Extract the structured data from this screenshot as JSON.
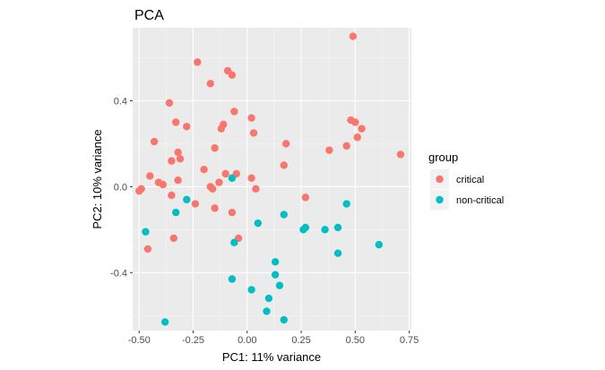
{
  "chart_data": {
    "type": "scatter",
    "title": "PCA",
    "xlabel": "PC1: 11% variance",
    "ylabel": "PC2: 10% variance",
    "xlim": [
      -0.53,
      0.76
    ],
    "ylim": [
      -0.67,
      0.74
    ],
    "xticks": [
      -0.5,
      -0.25,
      0.0,
      0.25,
      0.5,
      0.75
    ],
    "xtick_labels": [
      "-0.50",
      "-0.25",
      "0.00",
      "0.25",
      "0.50",
      "0.75"
    ],
    "yticks": [
      -0.4,
      0.0,
      0.4
    ],
    "ytick_labels": [
      "-0.4",
      "0.0",
      "0.4"
    ],
    "grid": true,
    "legend": {
      "title": "group",
      "placement": "right"
    },
    "series": [
      {
        "name": "critical",
        "color": "#F8766D",
        "points": [
          [
            -0.23,
            0.58
          ],
          [
            -0.09,
            0.54
          ],
          [
            -0.07,
            0.52
          ],
          [
            -0.17,
            0.48
          ],
          [
            0.49,
            0.7
          ],
          [
            -0.36,
            0.39
          ],
          [
            -0.33,
            0.3
          ],
          [
            -0.28,
            0.28
          ],
          [
            -0.11,
            0.29
          ],
          [
            -0.12,
            0.27
          ],
          [
            -0.06,
            0.35
          ],
          [
            0.02,
            0.32
          ],
          [
            0.03,
            0.25
          ],
          [
            -0.43,
            0.21
          ],
          [
            -0.32,
            0.16
          ],
          [
            -0.15,
            0.18
          ],
          [
            -0.35,
            0.12
          ],
          [
            -0.31,
            0.13
          ],
          [
            0.18,
            0.2
          ],
          [
            0.48,
            0.31
          ],
          [
            0.5,
            0.3
          ],
          [
            0.53,
            0.27
          ],
          [
            0.51,
            0.23
          ],
          [
            0.46,
            0.19
          ],
          [
            0.38,
            0.17
          ],
          [
            0.71,
            0.15
          ],
          [
            -0.45,
            0.05
          ],
          [
            -0.41,
            0.02
          ],
          [
            -0.39,
            0.01
          ],
          [
            -0.32,
            0.03
          ],
          [
            -0.2,
            0.08
          ],
          [
            -0.1,
            0.06
          ],
          [
            -0.05,
            0.06
          ],
          [
            0.02,
            0.04
          ],
          [
            0.17,
            0.1
          ],
          [
            -0.49,
            -0.01
          ],
          [
            -0.5,
            -0.02
          ],
          [
            -0.17,
            0.0
          ],
          [
            -0.16,
            -0.01
          ],
          [
            -0.13,
            0.02
          ],
          [
            0.04,
            -0.01
          ],
          [
            -0.35,
            -0.04
          ],
          [
            -0.24,
            -0.08
          ],
          [
            -0.15,
            -0.1
          ],
          [
            -0.07,
            -0.12
          ],
          [
            0.27,
            -0.05
          ],
          [
            -0.46,
            -0.29
          ],
          [
            -0.34,
            -0.24
          ],
          [
            -0.04,
            -0.24
          ]
        ]
      },
      {
        "name": "non-critical",
        "color": "#00BFC4",
        "points": [
          [
            -0.07,
            0.04
          ],
          [
            -0.28,
            -0.06
          ],
          [
            -0.33,
            -0.12
          ],
          [
            0.05,
            -0.17
          ],
          [
            0.17,
            -0.13
          ],
          [
            -0.47,
            -0.21
          ],
          [
            -0.06,
            -0.26
          ],
          [
            0.26,
            -0.2
          ],
          [
            0.27,
            -0.19
          ],
          [
            0.36,
            -0.2
          ],
          [
            0.42,
            -0.19
          ],
          [
            0.46,
            -0.08
          ],
          [
            0.61,
            -0.27
          ],
          [
            0.42,
            -0.31
          ],
          [
            0.13,
            -0.35
          ],
          [
            0.13,
            -0.41
          ],
          [
            0.15,
            -0.46
          ],
          [
            -0.07,
            -0.43
          ],
          [
            0.02,
            -0.48
          ],
          [
            0.1,
            -0.52
          ],
          [
            0.09,
            -0.58
          ],
          [
            0.17,
            -0.62
          ],
          [
            -0.38,
            -0.63
          ]
        ]
      }
    ]
  }
}
